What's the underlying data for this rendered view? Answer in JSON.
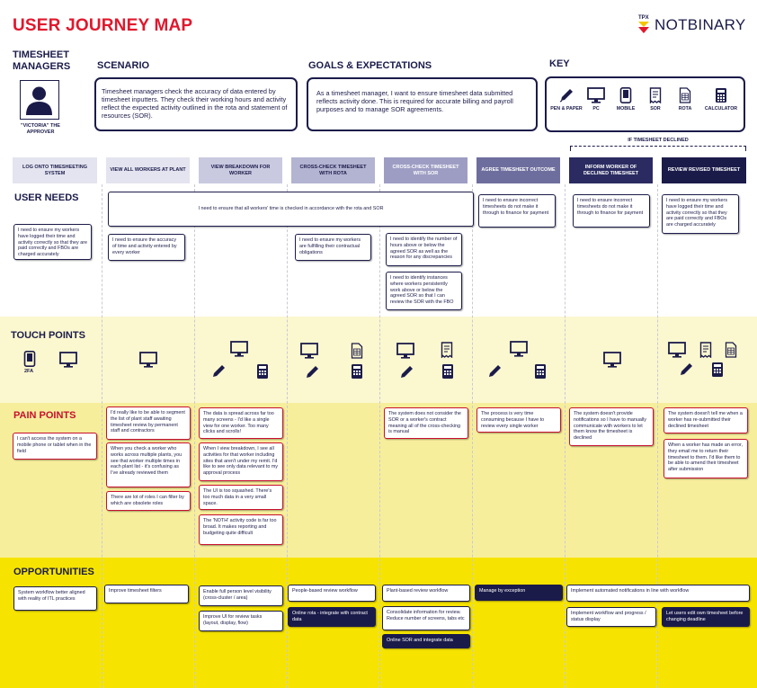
{
  "title": "USER JOURNEY MAP",
  "logo": {
    "prefix": "TPX",
    "name": "NOTBINARY"
  },
  "persona": {
    "heading": "TIMESHEET MANAGERS",
    "caption": "\"VICTORIA\" THE APPROVER"
  },
  "scenario": {
    "heading": "SCENARIO",
    "text": "Timesheet managers check the accuracy of data entered by timesheet inputters. They check their working hours and activity reflect the expected activity outlined in the rota and statement of resources (SOR)."
  },
  "goals": {
    "heading": "GOALS & EXPECTATIONS",
    "text": "As a timesheet manager, I want to ensure timesheet data submitted reflects activity done. This is required for accurate billing and payroll purposes and to manage SOR agreements."
  },
  "key": {
    "heading": "KEY",
    "items": [
      {
        "label": "PEN & PAPER",
        "icon": "pen-icon"
      },
      {
        "label": "PC",
        "icon": "monitor-icon"
      },
      {
        "label": "MOBILE",
        "icon": "mobile-icon"
      },
      {
        "label": "SOR",
        "icon": "receipt-icon"
      },
      {
        "label": "ROTA",
        "icon": "spreadsheet-icon"
      },
      {
        "label": "CALCULATOR",
        "icon": "calculator-icon"
      }
    ]
  },
  "declined_label": "IF TIMESHEET DECLINED",
  "stages": [
    {
      "label": "LOG ONTO TIMESHEETING SYSTEM",
      "color": "#e4e4f0",
      "text_color": "#1b1b4a"
    },
    {
      "label": "VIEW ALL WORKERS AT PLANT",
      "color": "#e4e4f0",
      "text_color": "#1b1b4a"
    },
    {
      "label": "VIEW BREAKDOWN FOR WORKER",
      "color": "#c9c9e0",
      "text_color": "#1b1b4a"
    },
    {
      "label": "CROSS-CHECK TIMESHEET WITH ROTA",
      "color": "#b3b3d2",
      "text_color": "#1b1b4a"
    },
    {
      "label": "CROSS-CHECK TIMESHEET WITH SOR",
      "color": "#9d9dc4",
      "text_color": "#ffffff"
    },
    {
      "label": "AGREE TIMESHEET OUTCOME",
      "color": "#6e6e9e",
      "text_color": "#ffffff"
    },
    {
      "label": "INFORM WORKER OF DECLINED TIMESHEET",
      "color": "#2b2b62",
      "text_color": "#ffffff"
    },
    {
      "label": "REVIEW REVISED TIMESHEET",
      "color": "#1b1b4a",
      "text_color": "#ffffff"
    }
  ],
  "sections": {
    "user_needs": "USER NEEDS",
    "touch_points": "TOUCH POINTS",
    "pain_points": "PAIN POINTS",
    "opportunities": "OPPORTUNITIES"
  },
  "user_needs": {
    "wide": "I need to ensure that all workers' time is checked in accordance with the rota and SOR",
    "cards": [
      "I need to ensure my workers have logged their time and activity correctly so that they are paid correctly and FBOs are charged accurately",
      "I need to ensure the accuracy of time and activity  entered by every worker",
      "I need to ensure my workers are fulfilling their contractual obligations",
      "I need to identify the number of hours above or below the agreed SOR as well as the reason for any discrepancies",
      "I need to identify instances where workers persistently work above or below the agreed SOR so that I can review the SOR with the FBO",
      "I need to ensure incorrect timesheets do not make it through to finance for payment",
      "I need to ensure incorrect timesheets do not make it through to finance for payment",
      "I need to ensure my workers have logged their time and activity correctly so that they are paid correctly and FBOs are charged accurately"
    ]
  },
  "touch_points": {
    "two_fa": "2FA"
  },
  "pain_points": [
    "I can't access the system on a mobile phone or tablet when in the field",
    "I'd really like to be able to segment the list of plant staff awaiting timesheet review by permanent staff and contractors",
    "When you check a worker who works across multiple plants, you see that worker multiple times in each plant list - it's confusing as I've already reviewed them",
    "There are lot of roles I can filter by which are obsolete roles",
    "The data is spread across far too many screens - I'd like a single view for one worker. Too many clicks and scrolls!",
    "When I view breakdown, I see all activities for that worker including sites that aren't under my remit. I'd like to see only data relevant to my approval process",
    "The UI is too squashed. There's too much data in a very small space.",
    "The 'NOTH' activity code is far too broad. It makes reporting and budgeting quite difficult",
    "The system does not consider the SOR or a worker's contract meaning all of the cross-checking is manual",
    "The process is very time consuming because I have to review every single worker",
    "The system doesn't provide notifications so I have to manually communicate with workers to let them know the timesheet is declined",
    "The system doesn't tell me when a worker has re-submitted their declined timesheet",
    "When a worker has made an error, they email me to return their timesheet to them. I'd like them to be able to amend their timesheet after submission"
  ],
  "opportunities": [
    "System workflow better aligned with reality of ITL practices",
    "Improve timesheet filters",
    "Enable full person level visibility (cross-cluster / area)",
    "Improve UI for review tasks (layout, display, flow)",
    "People-based review workflow",
    "Online rota - integrate with contract data",
    "Plant-based review workflow",
    "Consolidate information for review. Reduce number of screens, tabs etc",
    "Online SOR and integrate data",
    "Manage by exception",
    "Implement automated notifications in line with workflow",
    "Implement workflow and progress / status display",
    "Let users edit own timesheet before changing deadline"
  ],
  "colors": {
    "accent_red": "#e0182d",
    "navy": "#1b1b4a",
    "yellow": "#f6e400"
  }
}
